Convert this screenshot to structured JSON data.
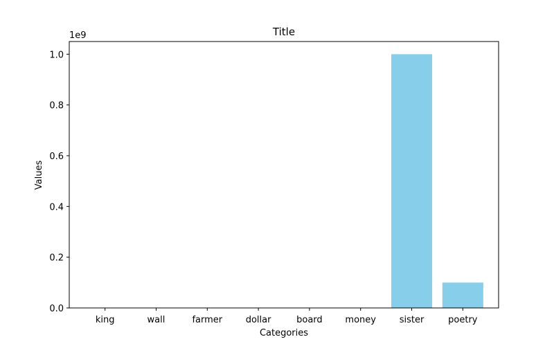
{
  "chart_data": {
    "type": "bar",
    "title": "Title",
    "xlabel": "Categories",
    "ylabel": "Values",
    "categories": [
      "king",
      "wall",
      "farmer",
      "dollar",
      "board",
      "money",
      "sister",
      "poetry"
    ],
    "values": [
      10,
      100,
      1000,
      10000,
      100000,
      1000000,
      1000000000,
      100000000
    ],
    "ylim": [
      0,
      1050000000
    ],
    "yticks": [
      0,
      200000000,
      400000000,
      600000000,
      800000000,
      1000000000
    ],
    "ytick_labels": [
      "0.0",
      "0.2",
      "0.4",
      "0.6",
      "0.8",
      "1.0"
    ],
    "y_offset_label": "1e9",
    "grid": false,
    "legend": "none",
    "bar_color": "#87ceeb"
  }
}
